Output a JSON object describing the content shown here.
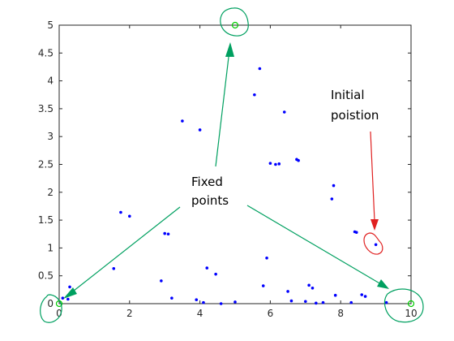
{
  "chart_data": {
    "type": "scatter",
    "title": "",
    "xlabel": "",
    "ylabel": "",
    "xlim": [
      0,
      10
    ],
    "ylim": [
      0,
      5
    ],
    "x_ticks": [
      0,
      2,
      4,
      6,
      8,
      10
    ],
    "y_ticks": [
      0,
      0.5,
      1,
      1.5,
      2,
      2.5,
      3,
      3.5,
      4,
      4.5,
      5
    ],
    "grid": false,
    "legend": "none",
    "point_color": "#0000ff",
    "points": [
      [
        0.3,
        0.3
      ],
      [
        0.1,
        0.1
      ],
      [
        0.25,
        0.08
      ],
      [
        1.55,
        0.63
      ],
      [
        1.75,
        1.64
      ],
      [
        2.0,
        1.57
      ],
      [
        2.9,
        0.41
      ],
      [
        3.0,
        1.26
      ],
      [
        3.1,
        1.25
      ],
      [
        3.2,
        0.1
      ],
      [
        3.5,
        3.28
      ],
      [
        3.9,
        0.07
      ],
      [
        4.0,
        3.12
      ],
      [
        4.1,
        0.02
      ],
      [
        4.2,
        0.64
      ],
      [
        4.45,
        0.53
      ],
      [
        4.6,
        0.0
      ],
      [
        5.0,
        0.03
      ],
      [
        5.55,
        3.75
      ],
      [
        5.7,
        4.22
      ],
      [
        5.8,
        0.32
      ],
      [
        5.9,
        0.82
      ],
      [
        6.0,
        2.52
      ],
      [
        6.15,
        2.5
      ],
      [
        6.25,
        2.51
      ],
      [
        6.4,
        3.44
      ],
      [
        6.5,
        0.22
      ],
      [
        6.6,
        0.05
      ],
      [
        6.75,
        2.59
      ],
      [
        6.8,
        2.57
      ],
      [
        7.0,
        0.04
      ],
      [
        7.1,
        0.33
      ],
      [
        7.2,
        0.28
      ],
      [
        7.3,
        0.01
      ],
      [
        7.5,
        0.02
      ],
      [
        7.75,
        1.88
      ],
      [
        7.8,
        2.12
      ],
      [
        7.85,
        0.15
      ],
      [
        8.3,
        0.02
      ],
      [
        8.4,
        1.29
      ],
      [
        8.45,
        1.28
      ],
      [
        8.6,
        0.16
      ],
      [
        8.7,
        0.13
      ],
      [
        9.0,
        1.06
      ],
      [
        9.3,
        0.02
      ]
    ],
    "fixed_points": [
      [
        5,
        5
      ],
      [
        0,
        0
      ],
      [
        10,
        0
      ]
    ],
    "fixed_point_color": "#00cc00",
    "annotations": [
      {
        "text_lines": [
          "Fixed",
          "points"
        ],
        "color": "#00a060",
        "marks": "circles around the fixed points, with arrows pointing to them"
      },
      {
        "text_lines": [
          "Initial",
          "poistion"
        ],
        "color": "#e02020",
        "marks": "circle around the point near (9.0, 1.06), with an arrow pointing to it"
      }
    ]
  }
}
